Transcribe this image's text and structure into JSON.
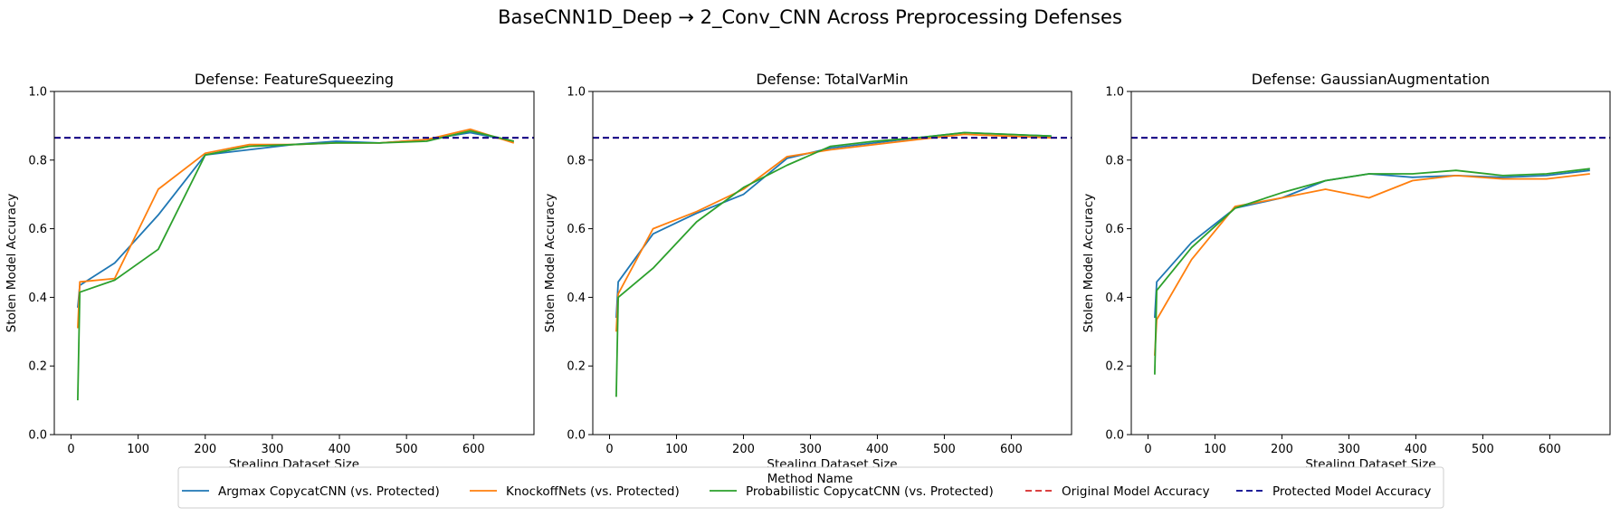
{
  "figure": {
    "suptitle": "BaseCNN1D_Deep → 2_Conv_CNN Across Preprocessing Defenses"
  },
  "legend": {
    "title": "Method Name",
    "placement": "bottom-center",
    "entries": [
      {
        "label": "Argmax CopycatCNN (vs. Protected)",
        "color": "#1f77b4",
        "style": "solid"
      },
      {
        "label": "KnockoffNets (vs. Protected)",
        "color": "#ff7f0e",
        "style": "solid"
      },
      {
        "label": "Probabilistic CopycatCNN (vs. Protected)",
        "color": "#2ca02c",
        "style": "solid"
      },
      {
        "label": "Original Model Accuracy",
        "color": "#d62728",
        "style": "dashed"
      },
      {
        "label": "Protected Model Accuracy",
        "color": "#00008b",
        "style": "dashed"
      }
    ]
  },
  "chart_data": [
    {
      "type": "line",
      "title": "Defense: FeatureSqueezing",
      "xlabel": "Stealing Dataset Size",
      "ylabel": "Stolen Model Accuracy",
      "xlim": [
        -25,
        690
      ],
      "ylim": [
        0,
        1.0
      ],
      "xticks": [
        0,
        100,
        200,
        300,
        400,
        500,
        600
      ],
      "yticks": [
        0.0,
        0.2,
        0.4,
        0.6,
        0.8,
        1.0
      ],
      "grid": false,
      "hlines": [
        {
          "name": "Original Model Accuracy",
          "y": 0.865,
          "color": "#d62728"
        },
        {
          "name": "Protected Model Accuracy",
          "y": 0.865,
          "color": "#00008b"
        }
      ],
      "series": [
        {
          "name": "Argmax CopycatCNN (vs. Protected)",
          "color": "#1f77b4",
          "x": [
            10,
            13,
            65,
            130,
            200,
            265,
            330,
            395,
            460,
            530,
            595,
            660
          ],
          "y": [
            0.37,
            0.435,
            0.5,
            0.64,
            0.815,
            0.83,
            0.845,
            0.855,
            0.85,
            0.86,
            0.88,
            0.855
          ]
        },
        {
          "name": "KnockoffNets (vs. Protected)",
          "color": "#ff7f0e",
          "x": [
            10,
            13,
            65,
            130,
            200,
            265,
            330,
            395,
            460,
            530,
            595,
            660
          ],
          "y": [
            0.31,
            0.445,
            0.455,
            0.715,
            0.82,
            0.845,
            0.845,
            0.85,
            0.85,
            0.86,
            0.89,
            0.85
          ]
        },
        {
          "name": "Probabilistic CopycatCNN (vs. Protected)",
          "color": "#2ca02c",
          "x": [
            10,
            13,
            65,
            130,
            200,
            265,
            330,
            395,
            460,
            530,
            595,
            660
          ],
          "y": [
            0.1,
            0.415,
            0.45,
            0.54,
            0.815,
            0.84,
            0.845,
            0.85,
            0.85,
            0.855,
            0.885,
            0.855
          ]
        }
      ]
    },
    {
      "type": "line",
      "title": "Defense: TotalVarMin",
      "xlabel": "Stealing Dataset Size",
      "ylabel": "Stolen Model Accuracy",
      "xlim": [
        -25,
        690
      ],
      "ylim": [
        0,
        1.0
      ],
      "xticks": [
        0,
        100,
        200,
        300,
        400,
        500,
        600
      ],
      "yticks": [
        0.0,
        0.2,
        0.4,
        0.6,
        0.8,
        1.0
      ],
      "grid": false,
      "hlines": [
        {
          "name": "Original Model Accuracy",
          "y": 0.865,
          "color": "#d62728"
        },
        {
          "name": "Protected Model Accuracy",
          "y": 0.865,
          "color": "#00008b"
        }
      ],
      "series": [
        {
          "name": "Argmax CopycatCNN (vs. Protected)",
          "color": "#1f77b4",
          "x": [
            10,
            13,
            65,
            130,
            200,
            265,
            330,
            395,
            460,
            530,
            595,
            660
          ],
          "y": [
            0.34,
            0.445,
            0.585,
            0.645,
            0.7,
            0.805,
            0.835,
            0.85,
            0.865,
            0.88,
            0.875,
            0.87
          ]
        },
        {
          "name": "KnockoffNets (vs. Protected)",
          "color": "#ff7f0e",
          "x": [
            10,
            13,
            65,
            130,
            200,
            265,
            330,
            395,
            460,
            530,
            595,
            660
          ],
          "y": [
            0.3,
            0.41,
            0.6,
            0.65,
            0.715,
            0.81,
            0.83,
            0.845,
            0.86,
            0.875,
            0.87,
            0.865
          ]
        },
        {
          "name": "Probabilistic CopycatCNN (vs. Protected)",
          "color": "#2ca02c",
          "x": [
            10,
            13,
            65,
            130,
            200,
            265,
            330,
            395,
            460,
            530,
            595,
            660
          ],
          "y": [
            0.11,
            0.4,
            0.485,
            0.62,
            0.72,
            0.785,
            0.84,
            0.855,
            0.865,
            0.88,
            0.875,
            0.87
          ]
        }
      ]
    },
    {
      "type": "line",
      "title": "Defense: GaussianAugmentation",
      "xlabel": "Stealing Dataset Size",
      "ylabel": "Stolen Model Accuracy",
      "xlim": [
        -25,
        690
      ],
      "ylim": [
        0,
        1.0
      ],
      "xticks": [
        0,
        100,
        200,
        300,
        400,
        500,
        600
      ],
      "yticks": [
        0.0,
        0.2,
        0.4,
        0.6,
        0.8,
        1.0
      ],
      "grid": false,
      "hlines": [
        {
          "name": "Original Model Accuracy",
          "y": 0.865,
          "color": "#d62728"
        },
        {
          "name": "Protected Model Accuracy",
          "y": 0.865,
          "color": "#00008b"
        }
      ],
      "series": [
        {
          "name": "Argmax CopycatCNN (vs. Protected)",
          "color": "#1f77b4",
          "x": [
            10,
            13,
            65,
            130,
            200,
            265,
            330,
            395,
            460,
            530,
            595,
            660
          ],
          "y": [
            0.34,
            0.445,
            0.56,
            0.66,
            0.69,
            0.74,
            0.76,
            0.75,
            0.755,
            0.75,
            0.755,
            0.77
          ]
        },
        {
          "name": "KnockoffNets (vs. Protected)",
          "color": "#ff7f0e",
          "x": [
            10,
            13,
            65,
            130,
            200,
            265,
            330,
            395,
            460,
            530,
            595,
            660
          ],
          "y": [
            0.23,
            0.335,
            0.51,
            0.665,
            0.69,
            0.715,
            0.69,
            0.74,
            0.755,
            0.745,
            0.745,
            0.76
          ]
        },
        {
          "name": "Probabilistic CopycatCNN (vs. Protected)",
          "color": "#2ca02c",
          "x": [
            10,
            13,
            65,
            130,
            200,
            265,
            330,
            395,
            460,
            530,
            595,
            660
          ],
          "y": [
            0.175,
            0.42,
            0.545,
            0.66,
            0.705,
            0.74,
            0.76,
            0.76,
            0.77,
            0.755,
            0.76,
            0.775
          ]
        }
      ]
    }
  ]
}
